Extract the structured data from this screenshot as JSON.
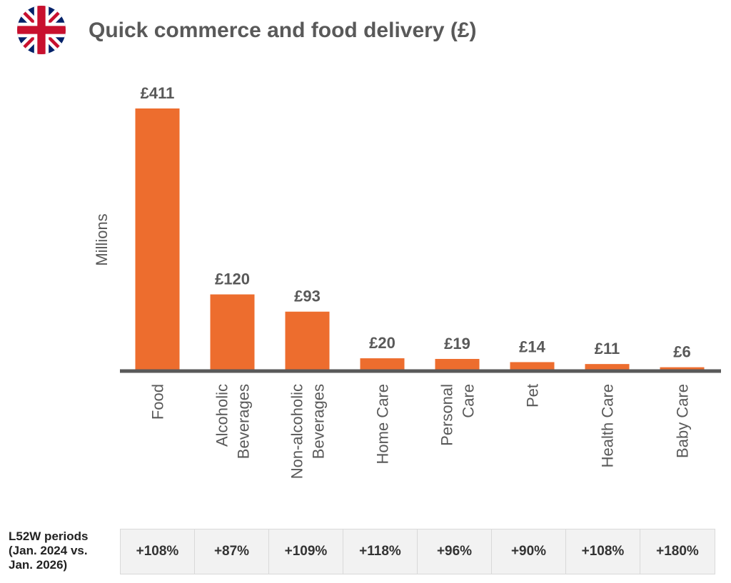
{
  "title": "Quick commerce and food delivery (£)",
  "flag_icon": "uk-flag-icon",
  "colors": {
    "bar": "#ed6d2e",
    "axis": "#595959",
    "text": "#595959",
    "table_bg": "#f2f2f2"
  },
  "chart_data": {
    "type": "bar",
    "title": "Quick commerce and food delivery (£)",
    "ylabel": "Millions",
    "xlabel": "",
    "categories": [
      "Food",
      "Alcoholic Beverages",
      "Non-alcoholic Beverages",
      "Home Care",
      "Personal Care",
      "Pet",
      "Health Care",
      "Baby Care"
    ],
    "values": [
      411,
      120,
      93,
      20,
      19,
      14,
      11,
      6
    ],
    "data_labels": [
      "£411",
      "£120",
      "£93",
      "£20",
      "£19",
      "£14",
      "£11",
      "£6"
    ],
    "ylim": [
      0,
      411
    ],
    "grid": false,
    "legend": "none"
  },
  "growth_table": {
    "label_lines": [
      "L52W periods",
      "(Jan. 2024 vs.",
      "Jan. 2026)"
    ],
    "values": [
      "+108%",
      "+87%",
      "+109%",
      "+118%",
      "+96%",
      "+90%",
      "+108%",
      "+180%"
    ]
  }
}
